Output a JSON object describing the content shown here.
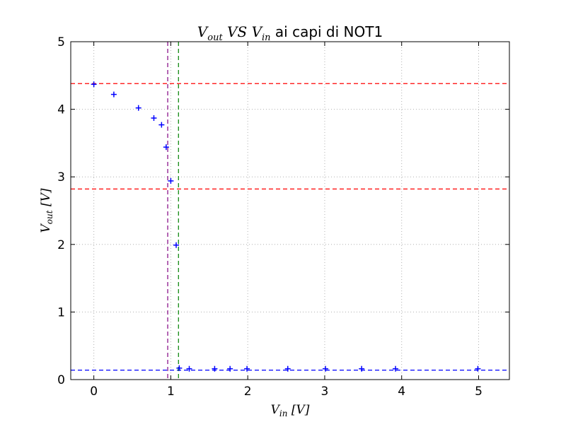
{
  "chart_data": {
    "type": "scatter",
    "title": {
      "prefix_math": "V",
      "prefix_sub": "out",
      "middle_math": "VS",
      "second_math": "V",
      "second_sub": "in",
      "suffix": " ai capi di NOT1"
    },
    "xlabel": {
      "main": "V",
      "sub": "in",
      "unit": "[V]"
    },
    "ylabel": {
      "main": "V",
      "sub": "out",
      "unit": "[V]"
    },
    "xlim": [
      -0.3,
      5.4
    ],
    "ylim": [
      0,
      5
    ],
    "xticks": [
      0,
      1,
      2,
      3,
      4,
      5
    ],
    "yticks": [
      0,
      1,
      2,
      3,
      4,
      5
    ],
    "grid": true,
    "series": [
      {
        "marker": "+",
        "color": "#0000ff",
        "x": [
          0.0,
          0.26,
          0.58,
          0.78,
          0.88,
          0.94,
          1.0,
          1.07,
          1.11,
          1.24,
          1.57,
          1.77,
          1.99,
          2.52,
          3.01,
          3.48,
          3.92,
          4.99
        ],
        "y": [
          4.37,
          4.22,
          4.02,
          3.87,
          3.77,
          3.44,
          2.94,
          1.99,
          0.17,
          0.16,
          0.16,
          0.16,
          0.16,
          0.16,
          0.16,
          0.16,
          0.16,
          0.16
        ]
      }
    ],
    "reference_lines": [
      {
        "orientation": "horizontal",
        "value": 4.38,
        "color": "#ff0000",
        "style": "dashed"
      },
      {
        "orientation": "horizontal",
        "value": 2.82,
        "color": "#ff0000",
        "style": "dashed"
      },
      {
        "orientation": "horizontal",
        "value": 0.14,
        "color": "#0000ff",
        "style": "dashed"
      },
      {
        "orientation": "vertical",
        "value": 0.96,
        "color": "#800080",
        "style": "dashed"
      },
      {
        "orientation": "vertical",
        "value": 1.1,
        "color": "#008000",
        "style": "dashed"
      }
    ]
  }
}
